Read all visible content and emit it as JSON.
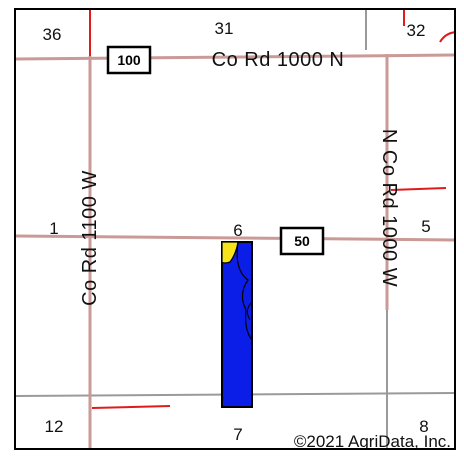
{
  "map": {
    "copyright": "©2021 AgriData, Inc.",
    "section_numbers": {
      "nw_top": "36",
      "n_top": "31",
      "ne_top": "32",
      "w_mid": "1",
      "center_mid": "6",
      "e_mid": "5",
      "sw_bottom": "12",
      "s_bottom": "7",
      "se_bottom": "8"
    },
    "roads": {
      "north": "Co Rd 1000 N",
      "west": "Co Rd 1100 W",
      "east": "N Co Rd 1000 W"
    },
    "shields": {
      "north": "100",
      "middle": "50"
    },
    "colors": {
      "road": "#c99a97",
      "section_line_red": "#e01b1b",
      "section_line_gray": "#9a9a9a",
      "field_fill": "#0b1ee8",
      "field_border": "#000000",
      "soil_highlight": "#f5e41c",
      "background": "#ffffff"
    }
  }
}
